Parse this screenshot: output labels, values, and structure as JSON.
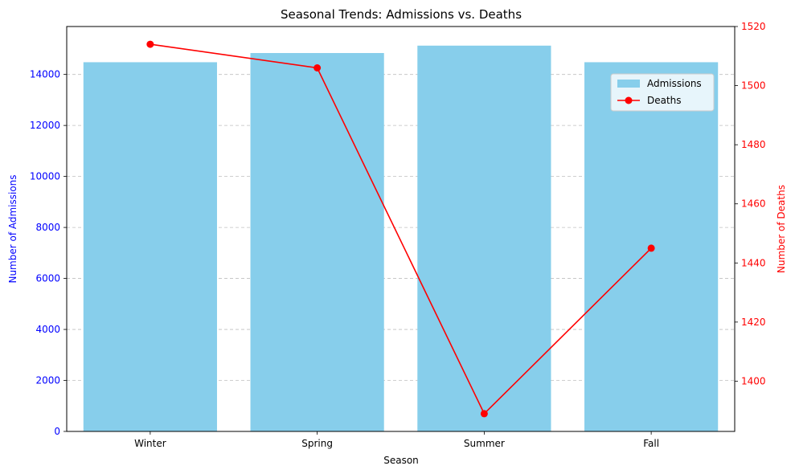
{
  "chart_data": {
    "type": "bar+line",
    "title": "Seasonal Trends: Admissions vs. Deaths",
    "xlabel": "Season",
    "ylabel_left": "Number of Admissions",
    "ylabel_right": "Number of Deaths",
    "categories": [
      "Winter",
      "Spring",
      "Summer",
      "Fall"
    ],
    "series": [
      {
        "name": "Admissions",
        "kind": "bar",
        "axis": "left",
        "color": "#87CEEB",
        "values": [
          14480,
          14840,
          15130,
          14480
        ]
      },
      {
        "name": "Deaths",
        "kind": "line",
        "axis": "right",
        "color": "#FF0000",
        "values": [
          1514,
          1506,
          1389,
          1445
        ]
      }
    ],
    "ylim_left": [
      0,
      15880
    ],
    "ylim_right": [
      1383,
      1520
    ],
    "yticks_left": [
      "0",
      "2000",
      "4000",
      "6000",
      "8000",
      "10000",
      "12000",
      "14000"
    ],
    "yticks_right": [
      "1400",
      "1420",
      "1440",
      "1460",
      "1480",
      "1500",
      "1520"
    ],
    "left_axis_color": "#0000FF",
    "right_axis_color": "#FF0000",
    "grid": "y-dashed",
    "legend_position": "upper-right"
  }
}
